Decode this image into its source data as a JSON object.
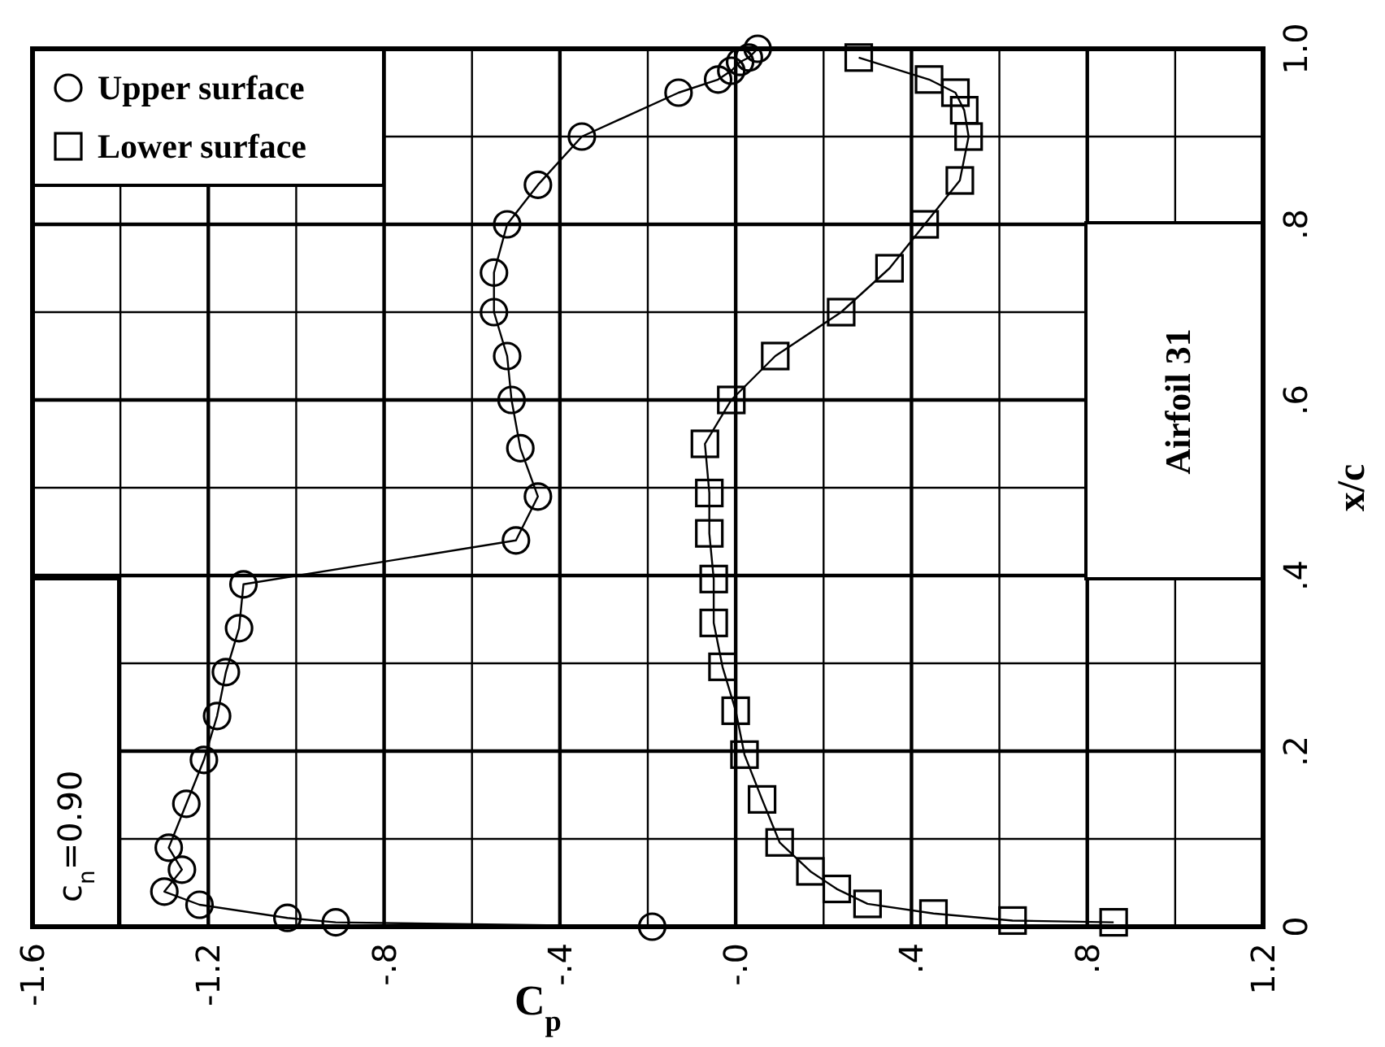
{
  "chart_data": {
    "type": "line",
    "xlabel": "C$_{p}$",
    "ylabel": "x/c",
    "xlim": [
      -1.6,
      1.2
    ],
    "ylim": [
      0,
      1.0
    ],
    "xticks": [
      -1.6,
      -1.2,
      {
        "value": -0.8,
        "label": "-.8"
      },
      {
        "value": -0.4,
        "label": "-.4"
      },
      {
        "value": 0,
        "label": "-.0"
      },
      {
        "value": 0.4,
        "label": ".4"
      },
      {
        "value": 0.8,
        "label": ".8"
      },
      1.2
    ],
    "yticks": [
      0,
      {
        "value": 0.2,
        "label": ".2"
      },
      {
        "value": 0.4,
        "label": ".4"
      },
      {
        "value": 0.6,
        "label": ".6"
      },
      {
        "value": 0.8,
        "label": ".8"
      },
      {
        "value": 1.0,
        "label": "1.0"
      }
    ],
    "grid": true,
    "legend": "top left",
    "line_style": "solid",
    "annotations": [
      "c$_{n}$=0.90",
      "Airfoil 31"
    ],
    "series": [
      {
        "name": "Upper surface",
        "color": "#000000",
        "marker": "circle",
        "x": [
          -0.19,
          -0.91,
          -1.02,
          -1.22,
          -1.3,
          -1.26,
          -1.29,
          -1.25,
          -1.21,
          -1.18,
          -1.16,
          -1.13,
          -1.12,
          -0.5,
          -0.45,
          -0.49,
          -0.51,
          -0.52,
          -0.55,
          -0.55,
          -0.52,
          -0.45,
          -0.35,
          -0.13,
          -0.04,
          -0.01,
          0.01,
          0.03,
          0.05
        ],
        "values": [
          0.0,
          0.005,
          0.01,
          0.025,
          0.04,
          0.065,
          0.09,
          0.14,
          0.19,
          0.24,
          0.29,
          0.34,
          0.39,
          0.44,
          0.49,
          0.545,
          0.6,
          0.65,
          0.7,
          0.745,
          0.8,
          0.845,
          0.9,
          0.95,
          0.965,
          0.975,
          0.985,
          0.99,
          1.0
        ]
      },
      {
        "name": "Lower surface",
        "color": "#000000",
        "marker": "square",
        "x": [
          0.86,
          0.63,
          0.45,
          0.3,
          0.23,
          0.17,
          0.1,
          0.06,
          0.02,
          0.0,
          -0.03,
          -0.05,
          -0.05,
          -0.06,
          -0.06,
          -0.07,
          -0.01,
          0.09,
          0.24,
          0.35,
          0.43,
          0.51,
          0.53,
          0.52,
          0.5,
          0.44,
          0.28
        ],
        "values": [
          0.005,
          0.007,
          0.015,
          0.026,
          0.043,
          0.063,
          0.096,
          0.145,
          0.196,
          0.246,
          0.296,
          0.346,
          0.396,
          0.448,
          0.494,
          0.55,
          0.6,
          0.65,
          0.7,
          0.75,
          0.8,
          0.85,
          0.9,
          0.93,
          0.95,
          0.965,
          0.99
        ]
      }
    ]
  }
}
